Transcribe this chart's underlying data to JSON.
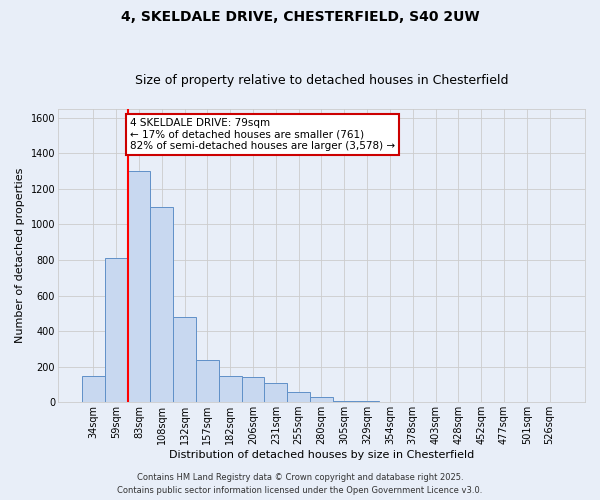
{
  "title_line1": "4, SKELDALE DRIVE, CHESTERFIELD, S40 2UW",
  "title_line2": "Size of property relative to detached houses in Chesterfield",
  "xlabel": "Distribution of detached houses by size in Chesterfield",
  "ylabel": "Number of detached properties",
  "bar_labels": [
    "34sqm",
    "59sqm",
    "83sqm",
    "108sqm",
    "132sqm",
    "157sqm",
    "182sqm",
    "206sqm",
    "231sqm",
    "255sqm",
    "280sqm",
    "305sqm",
    "329sqm",
    "354sqm",
    "378sqm",
    "403sqm",
    "428sqm",
    "452sqm",
    "477sqm",
    "501sqm",
    "526sqm"
  ],
  "bar_values": [
    150,
    810,
    1300,
    1100,
    480,
    240,
    150,
    140,
    110,
    60,
    30,
    5,
    4,
    3,
    2,
    1,
    1,
    0,
    0,
    0,
    0
  ],
  "bar_color": "#c8d8f0",
  "bar_edge_color": "#6090c8",
  "red_line_x": 1.5,
  "annotation_text": "4 SKELDALE DRIVE: 79sqm\n← 17% of detached houses are smaller (761)\n82% of semi-detached houses are larger (3,578) →",
  "annotation_box_color": "#ffffff",
  "annotation_border_color": "#cc0000",
  "ylim": [
    0,
    1650
  ],
  "yticks": [
    0,
    200,
    400,
    600,
    800,
    1000,
    1200,
    1400,
    1600
  ],
  "grid_color": "#cccccc",
  "background_color": "#e8eef8",
  "footer_line1": "Contains HM Land Registry data © Crown copyright and database right 2025.",
  "footer_line2": "Contains public sector information licensed under the Open Government Licence v3.0.",
  "title_fontsize": 10,
  "subtitle_fontsize": 9,
  "axis_label_fontsize": 8,
  "tick_fontsize": 7,
  "footer_fontsize": 6,
  "annotation_fontsize": 7.5
}
